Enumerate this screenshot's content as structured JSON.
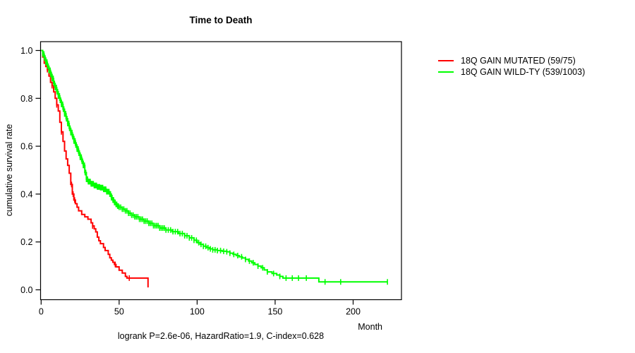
{
  "chart_data": {
    "type": "line",
    "subtype": "kaplan-meier-step",
    "title": "Time to Death",
    "xlabel": "Month",
    "ylabel": "cumulative survival rate",
    "annotation": "logrank P=2.6e-06, HazardRatio=1.9, C-index=0.628",
    "xlim": [
      0,
      230
    ],
    "ylim": [
      0.0,
      1.0
    ],
    "x_ticks": [
      0,
      50,
      100,
      150,
      200
    ],
    "y_ticks": [
      "0.0",
      "0.2",
      "0.4",
      "0.6",
      "0.8",
      "1.0"
    ],
    "grid": false,
    "legend_position": "right-outside",
    "series": [
      {
        "name": "18Q GAIN MUTATED (59/75)",
        "color": "#ff0000",
        "steps": [
          [
            0,
            1.0
          ],
          [
            1,
            0.973
          ],
          [
            2,
            0.947
          ],
          [
            3,
            0.933
          ],
          [
            4,
            0.92
          ],
          [
            5,
            0.893
          ],
          [
            6,
            0.867
          ],
          [
            7,
            0.853
          ],
          [
            8,
            0.827
          ],
          [
            9,
            0.8
          ],
          [
            10,
            0.773
          ],
          [
            11,
            0.747
          ],
          [
            12,
            0.7
          ],
          [
            13,
            0.66
          ],
          [
            14,
            0.62
          ],
          [
            15,
            0.58
          ],
          [
            16,
            0.547
          ],
          [
            17,
            0.52
          ],
          [
            18,
            0.487
          ],
          [
            19,
            0.44
          ],
          [
            20,
            0.4
          ],
          [
            21,
            0.375
          ],
          [
            22,
            0.36
          ],
          [
            23,
            0.345
          ],
          [
            24,
            0.33
          ],
          [
            26,
            0.315
          ],
          [
            28,
            0.305
          ],
          [
            30,
            0.295
          ],
          [
            32,
            0.28
          ],
          [
            33,
            0.267
          ],
          [
            34,
            0.255
          ],
          [
            35,
            0.242
          ],
          [
            36,
            0.22
          ],
          [
            37,
            0.205
          ],
          [
            38,
            0.193
          ],
          [
            40,
            0.177
          ],
          [
            41,
            0.164
          ],
          [
            43,
            0.148
          ],
          [
            44,
            0.134
          ],
          [
            45,
            0.124
          ],
          [
            46,
            0.115
          ],
          [
            47,
            0.106
          ],
          [
            48,
            0.096
          ],
          [
            50,
            0.082
          ],
          [
            52,
            0.07
          ],
          [
            54,
            0.056
          ],
          [
            55,
            0.049
          ],
          [
            68.5,
            0.01
          ]
        ],
        "censor_times": [
          4,
          7,
          10,
          13,
          19.5,
          20.5,
          21.5,
          33,
          47.5,
          56.5
        ]
      },
      {
        "name": "18Q GAIN WILD-TY (539/1003)",
        "color": "#00ff00",
        "steps": [
          [
            0,
            1.0
          ],
          [
            1,
            0.985
          ],
          [
            2,
            0.968
          ],
          [
            3,
            0.951
          ],
          [
            4,
            0.934
          ],
          [
            5,
            0.917
          ],
          [
            6,
            0.9
          ],
          [
            7,
            0.883
          ],
          [
            8,
            0.862
          ],
          [
            9,
            0.845
          ],
          [
            10,
            0.828
          ],
          [
            11,
            0.81
          ],
          [
            12,
            0.792
          ],
          [
            13,
            0.775
          ],
          [
            14,
            0.755
          ],
          [
            15,
            0.735
          ],
          [
            16,
            0.715
          ],
          [
            17,
            0.695
          ],
          [
            18,
            0.675
          ],
          [
            19,
            0.657
          ],
          [
            20,
            0.64
          ],
          [
            21,
            0.622
          ],
          [
            22,
            0.605
          ],
          [
            23,
            0.588
          ],
          [
            24,
            0.571
          ],
          [
            25,
            0.554
          ],
          [
            26,
            0.537
          ],
          [
            27,
            0.52
          ],
          [
            28,
            0.49
          ],
          [
            29,
            0.462
          ],
          [
            30,
            0.452
          ],
          [
            32,
            0.443
          ],
          [
            34,
            0.436
          ],
          [
            36,
            0.43
          ],
          [
            38,
            0.427
          ],
          [
            40,
            0.42
          ],
          [
            42,
            0.41
          ],
          [
            44,
            0.4
          ],
          [
            45,
            0.385
          ],
          [
            46,
            0.375
          ],
          [
            47,
            0.365
          ],
          [
            48,
            0.357
          ],
          [
            49,
            0.35
          ],
          [
            50,
            0.345
          ],
          [
            52,
            0.337
          ],
          [
            54,
            0.33
          ],
          [
            56,
            0.32
          ],
          [
            58,
            0.312
          ],
          [
            60,
            0.305
          ],
          [
            63,
            0.295
          ],
          [
            66,
            0.287
          ],
          [
            69,
            0.278
          ],
          [
            72,
            0.268
          ],
          [
            76,
            0.258
          ],
          [
            80,
            0.25
          ],
          [
            84,
            0.243
          ],
          [
            88,
            0.235
          ],
          [
            92,
            0.226
          ],
          [
            95,
            0.217
          ],
          [
            98,
            0.207
          ],
          [
            100,
            0.197
          ],
          [
            102,
            0.19
          ],
          [
            104,
            0.182
          ],
          [
            106,
            0.176
          ],
          [
            108,
            0.171
          ],
          [
            110,
            0.167
          ],
          [
            113,
            0.164
          ],
          [
            116,
            0.161
          ],
          [
            119,
            0.159
          ],
          [
            121,
            0.153
          ],
          [
            123,
            0.148
          ],
          [
            125,
            0.143
          ],
          [
            127,
            0.138
          ],
          [
            129,
            0.133
          ],
          [
            131,
            0.127
          ],
          [
            133,
            0.12
          ],
          [
            135,
            0.113
          ],
          [
            137,
            0.106
          ],
          [
            139,
            0.099
          ],
          [
            141,
            0.092
          ],
          [
            143,
            0.083
          ],
          [
            145,
            0.075
          ],
          [
            148,
            0.068
          ],
          [
            151,
            0.062
          ],
          [
            153,
            0.056
          ],
          [
            155,
            0.049
          ],
          [
            178,
            0.033
          ],
          [
            222,
            0.033
          ]
        ],
        "censor_times": [
          1,
          1.4,
          1.8,
          2.2,
          2.6,
          3,
          3.4,
          3.8,
          4.2,
          4.6,
          5,
          5.4,
          5.8,
          6.2,
          6.6,
          7,
          7.4,
          7.8,
          8.2,
          8.6,
          9,
          9.4,
          9.8,
          10.2,
          10.6,
          11,
          11.4,
          11.8,
          12.2,
          12.6,
          13,
          13.4,
          13.8,
          14.2,
          14.6,
          15,
          15.4,
          15.8,
          16.2,
          16.6,
          17,
          17.4,
          17.8,
          18.2,
          18.6,
          19,
          19.4,
          19.8,
          20.2,
          20.6,
          21,
          21.4,
          21.8,
          22.2,
          22.6,
          23,
          23.4,
          23.8,
          24.2,
          24.6,
          25,
          25.4,
          25.8,
          26.2,
          26.6,
          27,
          27.4,
          27.8,
          28.2,
          28.6,
          29,
          29.4,
          29.8,
          30.2,
          30.6,
          31,
          31.5,
          32,
          32.5,
          33,
          33.5,
          34,
          34.5,
          35,
          35.5,
          36,
          36.5,
          37,
          37.5,
          38,
          38.5,
          39,
          39.5,
          40,
          40.5,
          41,
          41.5,
          42,
          42.5,
          43,
          43.5,
          44,
          44.5,
          45,
          45.5,
          46,
          46.5,
          47,
          47.5,
          48,
          48.5,
          49,
          49.5,
          50,
          51,
          52,
          53,
          54,
          55,
          56,
          57,
          58,
          59,
          60,
          61,
          62,
          63,
          64,
          65,
          66,
          67,
          68,
          69,
          70,
          71,
          72,
          73,
          74,
          75,
          76,
          77,
          78,
          79,
          80,
          81.5,
          83,
          84.5,
          86,
          87.5,
          89,
          90.5,
          92,
          93.5,
          95,
          96.5,
          98,
          99.5,
          101,
          102.5,
          104,
          105.5,
          107,
          108.5,
          110,
          111.5,
          113,
          115,
          117,
          119,
          121,
          123.5,
          126,
          128.5,
          131,
          133.5,
          136,
          139,
          142,
          145,
          149,
          153,
          157,
          161,
          165,
          170,
          182,
          192,
          222
        ]
      }
    ]
  }
}
